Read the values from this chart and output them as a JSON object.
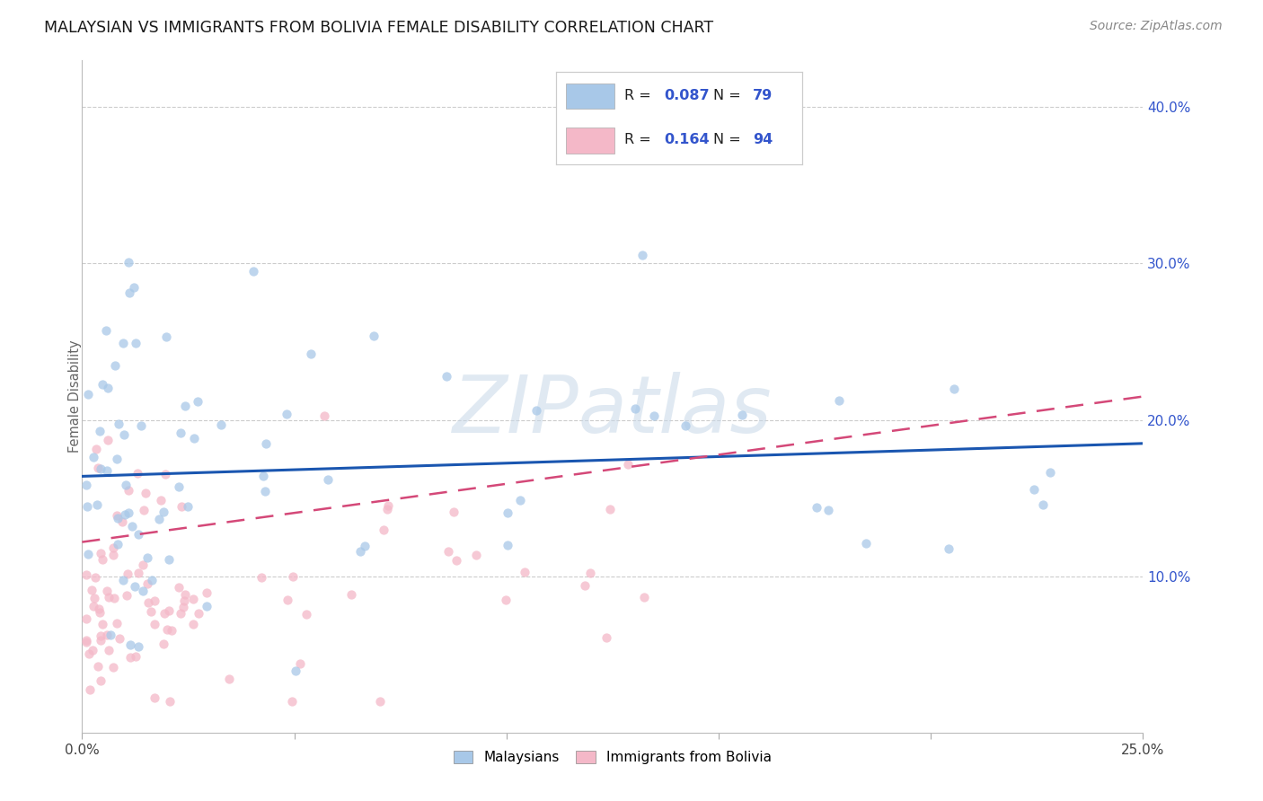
{
  "title": "MALAYSIAN VS IMMIGRANTS FROM BOLIVIA FEMALE DISABILITY CORRELATION CHART",
  "source": "Source: ZipAtlas.com",
  "ylabel": "Female Disability",
  "ytick_labels": [
    "10.0%",
    "20.0%",
    "30.0%",
    "40.0%"
  ],
  "ytick_values": [
    0.1,
    0.2,
    0.3,
    0.4
  ],
  "xlim": [
    0.0,
    0.25
  ],
  "ylim": [
    0.0,
    0.43
  ],
  "legend_label1": "Malaysians",
  "legend_label2": "Immigrants from Bolivia",
  "R1": 0.087,
  "N1": 79,
  "R2": 0.164,
  "N2": 94,
  "color1": "#a8c8e8",
  "color2": "#f4b8c8",
  "trendline1_color": "#1a56b0",
  "trendline2_color": "#d44878",
  "background_color": "#ffffff",
  "watermark_text": "ZIPatlas",
  "title_fontsize": 12.5,
  "source_fontsize": 10,
  "scatter_alpha": 0.75,
  "scatter_size": 55
}
